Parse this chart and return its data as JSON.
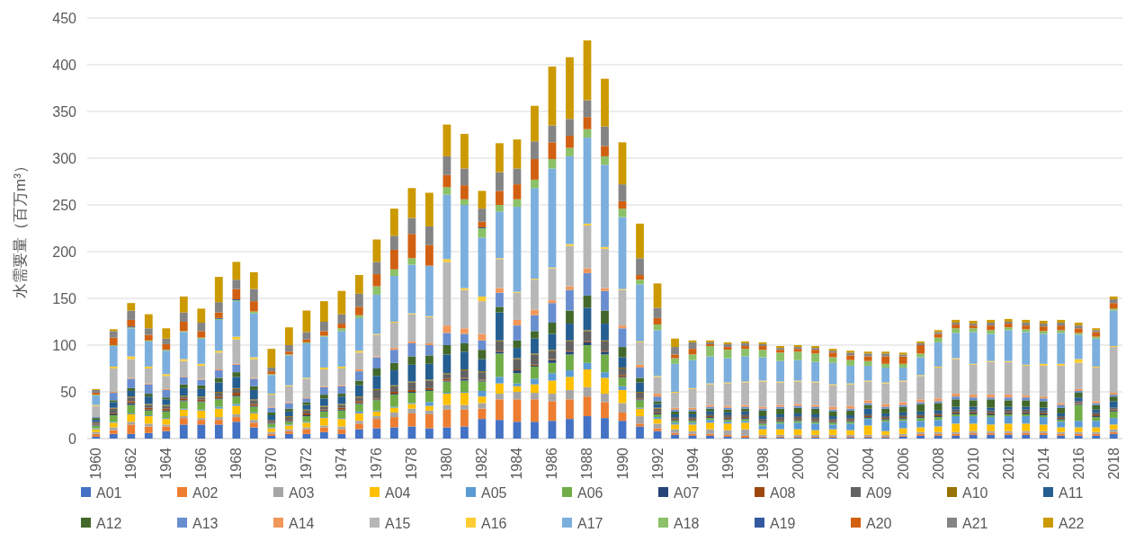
{
  "chart_data": {
    "type": "bar",
    "stacked": true,
    "ylabel": "水需要量（百万m³）",
    "ylim": [
      0,
      450
    ],
    "yticks": [
      0,
      50,
      100,
      150,
      200,
      250,
      300,
      350,
      400,
      450
    ],
    "grid": "y",
    "legend": "bottom",
    "categories": [
      "1960",
      null,
      "1962",
      null,
      "1964",
      null,
      "1966",
      null,
      "1968",
      null,
      "1970",
      null,
      "1972",
      null,
      "1974",
      null,
      "1976",
      null,
      "1978",
      null,
      "1980",
      null,
      "1982",
      null,
      "1984",
      null,
      "1986",
      null,
      "1988",
      null,
      "1990",
      null,
      "1992",
      null,
      "1994",
      null,
      "1996",
      null,
      "1998",
      null,
      "2000",
      null,
      "2002",
      null,
      "2004",
      null,
      "2006",
      null,
      "2008",
      null,
      "2010",
      null,
      "2012",
      null,
      "2014",
      null,
      "2016",
      null,
      "2018"
    ],
    "series": [
      {
        "name": "A01",
        "color": "#4472c4",
        "values": [
          2,
          5,
          5,
          6,
          8,
          15,
          15,
          15,
          18,
          12,
          3,
          5,
          5,
          7,
          5,
          10,
          11,
          12,
          13,
          11,
          12,
          13,
          21,
          20,
          18,
          18,
          19,
          21,
          24,
          22,
          19,
          13,
          8,
          4,
          3,
          3,
          2,
          1,
          1,
          1,
          1,
          1,
          1,
          1,
          1,
          1,
          2,
          3,
          3,
          3,
          4,
          4,
          4,
          4,
          4,
          3,
          3,
          3,
          5
        ]
      },
      {
        "name": "A02",
        "color": "#ed7d31",
        "values": [
          3,
          4,
          10,
          7,
          5,
          7,
          5,
          5,
          5,
          5,
          2,
          3,
          5,
          5,
          5,
          6,
          10,
          11,
          14,
          15,
          19,
          18,
          11,
          22,
          24,
          24,
          21,
          21,
          21,
          17,
          9,
          3,
          3,
          2,
          2,
          2,
          2,
          2,
          1,
          1,
          1,
          1,
          1,
          1,
          1,
          1,
          1,
          2,
          2,
          2,
          2,
          2,
          2,
          2,
          2,
          2,
          2,
          2,
          2
        ]
      },
      {
        "name": "A03",
        "color": "#a5a5a5",
        "values": [
          2,
          3,
          3,
          3,
          2,
          2,
          2,
          3,
          3,
          3,
          2,
          2,
          2,
          2,
          3,
          3,
          3,
          5,
          5,
          4,
          5,
          5,
          6,
          6,
          8,
          7,
          8,
          10,
          10,
          9,
          10,
          8,
          5,
          4,
          3,
          5,
          5,
          7,
          2,
          2,
          2,
          2,
          2,
          2,
          2,
          2,
          2,
          2,
          2,
          2,
          2,
          2,
          2,
          2,
          2,
          2,
          2,
          2,
          3
        ]
      },
      {
        "name": "A04",
        "color": "#ffc000",
        "values": [
          3,
          5,
          8,
          8,
          6,
          7,
          8,
          9,
          9,
          7,
          4,
          4,
          5,
          8,
          8,
          8,
          5,
          5,
          5,
          5,
          12,
          13,
          7,
          11,
          6,
          9,
          14,
          14,
          19,
          17,
          14,
          8,
          5,
          5,
          7,
          7,
          7,
          7,
          6,
          6,
          6,
          5,
          6,
          5,
          10,
          4,
          6,
          5,
          6,
          9,
          8,
          7,
          8,
          8,
          7,
          5,
          5,
          5,
          5
        ]
      },
      {
        "name": "A05",
        "color": "#5b9bd5",
        "values": [
          1,
          1,
          1,
          1,
          1,
          1,
          1,
          2,
          2,
          1,
          1,
          1,
          1,
          1,
          1,
          2,
          1,
          1,
          1,
          4,
          1,
          1,
          6,
          7,
          3,
          6,
          8,
          7,
          7,
          6,
          4,
          1,
          2,
          2,
          2,
          3,
          2,
          2,
          4,
          6,
          7,
          7,
          5,
          7,
          7,
          10,
          8,
          7,
          7,
          8,
          8,
          8,
          8,
          8,
          8,
          6,
          7,
          7,
          7
        ]
      },
      {
        "name": "A06",
        "color": "#70ad47",
        "values": [
          3,
          7,
          9,
          5,
          7,
          8,
          8,
          8,
          8,
          6,
          4,
          3,
          6,
          6,
          8,
          8,
          11,
          13,
          11,
          12,
          12,
          12,
          10,
          25,
          11,
          13,
          11,
          17,
          19,
          19,
          9,
          8,
          3,
          2,
          2,
          2,
          2,
          2,
          2,
          2,
          2,
          2,
          2,
          2,
          1,
          2,
          2,
          3,
          3,
          2,
          2,
          2,
          2,
          2,
          2,
          2,
          17,
          4,
          7
        ]
      },
      {
        "name": "A07",
        "color": "#264478",
        "values": [
          1,
          1,
          2,
          1,
          1,
          1,
          1,
          1,
          1,
          1,
          1,
          1,
          1,
          1,
          1,
          1,
          1,
          1,
          1,
          1,
          1,
          2,
          1,
          2,
          3,
          1,
          3,
          3,
          3,
          3,
          1,
          1,
          1,
          1,
          1,
          1,
          1,
          1,
          1,
          1,
          1,
          1,
          1,
          1,
          1,
          1,
          1,
          1,
          1,
          1,
          1,
          1,
          1,
          1,
          1,
          1,
          1,
          1,
          1
        ]
      },
      {
        "name": "A08",
        "color": "#9e480e",
        "values": [
          1,
          1,
          2,
          2,
          2,
          2,
          2,
          2,
          3,
          2,
          1,
          1,
          2,
          1,
          2,
          2,
          1,
          2,
          2,
          2,
          2,
          1,
          1,
          1,
          1,
          1,
          1,
          1,
          1,
          1,
          2,
          1,
          1,
          1,
          1,
          1,
          1,
          1,
          1,
          1,
          1,
          1,
          1,
          1,
          1,
          1,
          1,
          1,
          1,
          1,
          1,
          1,
          1,
          1,
          1,
          1,
          1,
          1,
          1
        ]
      },
      {
        "name": "A09",
        "color": "#636363",
        "values": [
          2,
          5,
          4,
          3,
          3,
          2,
          2,
          4,
          4,
          4,
          2,
          3,
          3,
          3,
          3,
          4,
          9,
          6,
          8,
          8,
          5,
          8,
          8,
          10,
          11,
          11,
          9,
          10,
          11,
          10,
          7,
          6,
          4,
          2,
          2,
          2,
          3,
          3,
          3,
          3,
          3,
          3,
          2,
          2,
          2,
          2,
          2,
          2,
          2,
          3,
          3,
          3,
          3,
          3,
          3,
          2,
          2,
          3,
          2
        ]
      },
      {
        "name": "A10",
        "color": "#997300",
        "values": [
          0,
          1,
          1,
          1,
          1,
          1,
          1,
          1,
          1,
          1,
          0,
          1,
          1,
          1,
          1,
          1,
          1,
          1,
          1,
          1,
          1,
          1,
          1,
          1,
          1,
          1,
          1,
          1,
          1,
          1,
          1,
          1,
          1,
          0,
          0,
          0,
          0,
          0,
          0,
          0,
          0,
          0,
          0,
          0,
          0,
          0,
          0,
          0,
          0,
          0,
          0,
          0,
          0,
          0,
          0,
          0,
          0,
          0,
          0
        ]
      },
      {
        "name": "A11",
        "color": "#255e91",
        "values": [
          2,
          6,
          6,
          8,
          6,
          8,
          8,
          10,
          12,
          10,
          5,
          5,
          5,
          8,
          8,
          12,
          14,
          16,
          18,
          17,
          20,
          19,
          13,
          30,
          11,
          16,
          17,
          18,
          24,
          18,
          11,
          10,
          4,
          3,
          3,
          3,
          3,
          3,
          3,
          3,
          3,
          3,
          3,
          3,
          6,
          3,
          3,
          3,
          3,
          3,
          3,
          3,
          3,
          3,
          3,
          3,
          4,
          3,
          7
        ]
      },
      {
        "name": "A12",
        "color": "#43682b",
        "values": [
          2,
          2,
          3,
          3,
          2,
          4,
          4,
          5,
          5,
          4,
          3,
          3,
          3,
          4,
          3,
          5,
          8,
          8,
          9,
          9,
          10,
          9,
          10,
          6,
          8,
          8,
          12,
          14,
          13,
          14,
          11,
          5,
          3,
          3,
          3,
          3,
          3,
          3,
          6,
          6,
          6,
          6,
          5,
          5,
          4,
          5,
          6,
          8,
          8,
          8,
          7,
          9,
          7,
          7,
          7,
          6,
          5,
          5,
          5
        ]
      },
      {
        "name": "A13",
        "color": "#698ed0",
        "values": [
          1,
          8,
          10,
          10,
          8,
          8,
          6,
          8,
          8,
          8,
          5,
          6,
          4,
          8,
          8,
          10,
          12,
          14,
          14,
          11,
          13,
          10,
          10,
          15,
          16,
          17,
          21,
          22,
          24,
          21,
          20,
          11,
          5,
          2,
          2,
          2,
          2,
          2,
          2,
          2,
          2,
          2,
          2,
          2,
          2,
          2,
          2,
          2,
          2,
          3,
          3,
          2,
          3,
          3,
          3,
          3,
          2,
          2,
          2
        ]
      },
      {
        "name": "A14",
        "color": "#f1975a",
        "values": [
          0,
          1,
          1,
          1,
          1,
          1,
          1,
          1,
          1,
          1,
          1,
          1,
          1,
          1,
          1,
          2,
          1,
          2,
          2,
          2,
          8,
          6,
          7,
          5,
          6,
          6,
          3,
          4,
          5,
          3,
          3,
          3,
          3,
          2,
          2,
          2,
          2,
          2,
          2,
          2,
          2,
          2,
          3,
          3,
          3,
          3,
          3,
          3,
          3,
          3,
          3,
          3,
          3,
          2,
          2,
          2,
          2,
          2,
          2
        ]
      },
      {
        "name": "A15",
        "color": "#b7b7b7",
        "values": [
          12,
          25,
          20,
          16,
          14,
          16,
          14,
          18,
          26,
          20,
          13,
          17,
          20,
          18,
          18,
          18,
          23,
          27,
          29,
          28,
          68,
          41,
          35,
          31,
          29,
          32,
          34,
          43,
          46,
          42,
          38,
          24,
          18,
          16,
          20,
          22,
          24,
          24,
          27,
          24,
          24,
          24,
          23,
          23,
          20,
          22,
          22,
          25,
          33,
          37,
          32,
          35,
          35,
          32,
          33,
          40,
          28,
          36,
          49
        ]
      },
      {
        "name": "A16",
        "color": "#ffcd33",
        "values": [
          1,
          2,
          3,
          2,
          2,
          2,
          2,
          2,
          3,
          2,
          1,
          1,
          1,
          2,
          2,
          2,
          1,
          1,
          1,
          1,
          3,
          2,
          5,
          1,
          1,
          1,
          1,
          2,
          2,
          2,
          1,
          1,
          1,
          1,
          1,
          1,
          1,
          1,
          1,
          1,
          1,
          1,
          1,
          1,
          1,
          1,
          1,
          1,
          1,
          1,
          1,
          1,
          1,
          1,
          2,
          2,
          4,
          1,
          1
        ]
      },
      {
        "name": "A17",
        "color": "#7cafdd",
        "values": [
          10,
          22,
          30,
          27,
          25,
          29,
          27,
          33,
          38,
          47,
          20,
          32,
          37,
          33,
          38,
          35,
          42,
          49,
          52,
          54,
          69,
          89,
          63,
          50,
          91,
          97,
          106,
          94,
          92,
          88,
          77,
          61,
          49,
          30,
          30,
          29,
          26,
          27,
          25,
          22,
          22,
          21,
          23,
          19,
          16,
          16,
          14,
          19,
          26,
          27,
          34,
          29,
          33,
          35,
          32,
          33,
          26,
          30,
          38
        ]
      },
      {
        "name": "A18",
        "color": "#8cc168",
        "values": [
          1,
          1,
          1,
          1,
          1,
          1,
          1,
          1,
          1,
          2,
          1,
          1,
          1,
          1,
          3,
          3,
          9,
          7,
          7,
          0,
          8,
          6,
          10,
          7,
          8,
          9,
          10,
          9,
          9,
          9,
          9,
          5,
          6,
          6,
          6,
          11,
          9,
          8,
          8,
          9,
          9,
          9,
          6,
          6,
          5,
          4,
          4,
          4,
          5,
          5,
          4,
          4,
          3,
          3,
          3,
          3,
          2,
          2,
          2
        ]
      },
      {
        "name": "A19",
        "color": "#335aa1",
        "values": [
          0,
          0,
          1,
          0,
          0,
          0,
          0,
          1,
          1,
          0,
          0,
          0,
          0,
          0,
          0,
          0,
          0,
          0,
          0,
          0,
          0,
          0,
          1,
          0,
          0,
          0,
          0,
          0,
          0,
          0,
          0,
          0,
          0,
          0,
          0,
          0,
          0,
          0,
          0,
          0,
          0,
          0,
          0,
          0,
          0,
          0,
          0,
          0,
          0,
          0,
          0,
          0,
          0,
          0,
          0,
          0,
          0,
          0,
          0
        ]
      },
      {
        "name": "A20",
        "color": "#d26012",
        "values": [
          2,
          8,
          7,
          6,
          6,
          10,
          7,
          6,
          11,
          11,
          3,
          3,
          3,
          5,
          5,
          9,
          13,
          21,
          26,
          22,
          13,
          15,
          6,
          15,
          16,
          22,
          18,
          13,
          13,
          11,
          8,
          5,
          7,
          4,
          6,
          2,
          3,
          3,
          4,
          3,
          3,
          4,
          5,
          5,
          5,
          8,
          8,
          9,
          4,
          4,
          3,
          5,
          4,
          4,
          5,
          5,
          5,
          5,
          6
        ]
      },
      {
        "name": "A21",
        "color": "#848484",
        "values": [
          3,
          7,
          10,
          7,
          6,
          10,
          9,
          11,
          10,
          13,
          4,
          7,
          8,
          10,
          10,
          14,
          13,
          15,
          17,
          20,
          20,
          18,
          14,
          20,
          17,
          19,
          18,
          18,
          18,
          21,
          18,
          18,
          11,
          8,
          7,
          2,
          3,
          3,
          2,
          2,
          2,
          2,
          2,
          3,
          3,
          3,
          2,
          2,
          2,
          2,
          2,
          3,
          2,
          3,
          3,
          3,
          3,
          2,
          4
        ]
      },
      {
        "name": "A22",
        "color": "#cc9a00",
        "values": [
          1,
          2,
          8,
          15,
          11,
          17,
          15,
          27,
          19,
          18,
          20,
          19,
          23,
          22,
          25,
          20,
          24,
          29,
          32,
          36,
          34,
          37,
          19,
          31,
          31,
          38,
          63,
          66,
          64,
          51,
          45,
          37,
          26,
          9,
          2,
          2,
          2,
          2,
          2,
          2,
          2,
          2,
          2,
          2,
          2,
          2,
          2,
          2,
          2,
          3,
          3,
          3,
          3,
          3,
          3,
          3,
          3,
          2,
          3
        ]
      }
    ]
  }
}
